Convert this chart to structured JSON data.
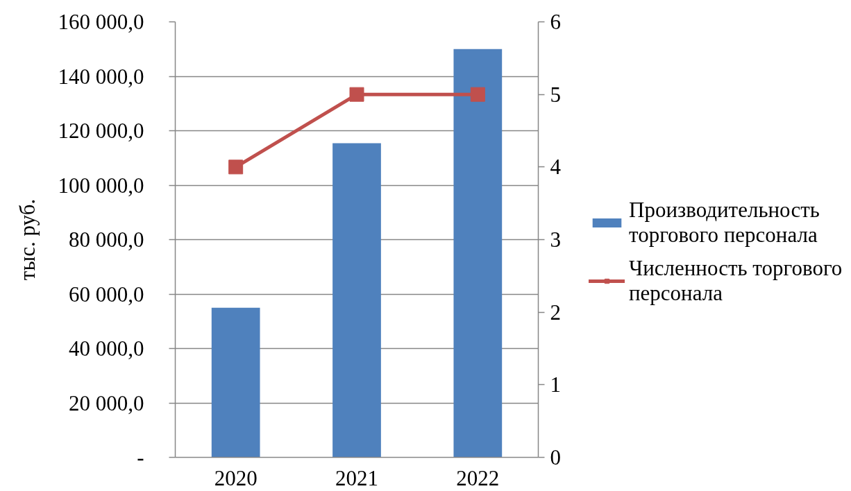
{
  "chart_data": {
    "type": "bar",
    "ylabel": "тыс. руб.",
    "categories": [
      "2020",
      "2021",
      "2022"
    ],
    "series": [
      {
        "name": "Производительность торгового персонала",
        "color": "#4f81bd",
        "values": [
          55000,
          115400,
          150000
        ]
      },
      {
        "name": "Численность торгового персонала",
        "type": "line",
        "axis": "y2",
        "color": "#c0504d",
        "values": [
          4,
          5,
          5
        ]
      }
    ],
    "marker": "square",
    "ylim": [
      0,
      160000
    ],
    "yticks": [
      {
        "value": 0,
        "label": "-"
      },
      {
        "value": 20000,
        "label": "20 000,0"
      },
      {
        "value": 40000,
        "label": "40 000,0"
      },
      {
        "value": 60000,
        "label": "60 000,0"
      },
      {
        "value": 80000,
        "label": "80 000,0"
      },
      {
        "value": 100000,
        "label": "100 000,0"
      },
      {
        "value": 120000,
        "label": "120 000,0"
      },
      {
        "value": 140000,
        "label": "140 000,0"
      },
      {
        "value": 160000,
        "label": "160 000,0"
      }
    ],
    "y2lim": [
      0,
      6
    ],
    "y2ticks": [
      0,
      1,
      2,
      3,
      4,
      5,
      6
    ],
    "grid": "y",
    "legend": "right"
  }
}
